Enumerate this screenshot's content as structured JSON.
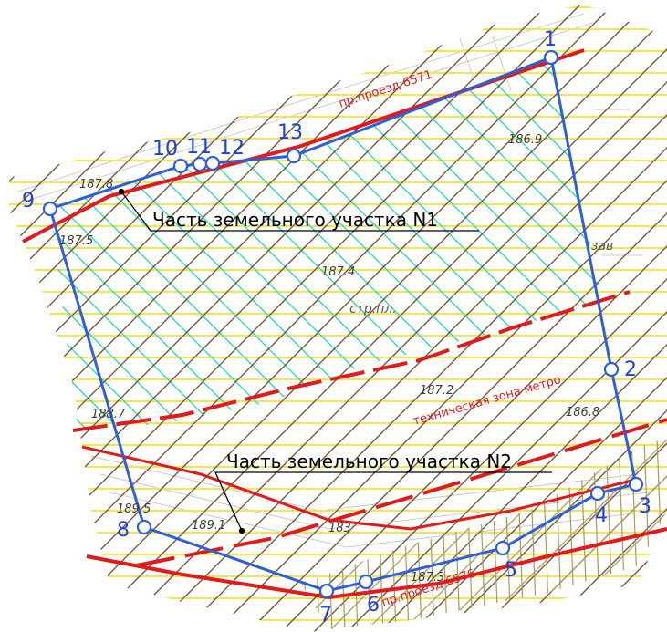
{
  "map": {
    "vertices": [
      {
        "label": "1"
      },
      {
        "label": "2"
      },
      {
        "label": "3"
      },
      {
        "label": "4"
      },
      {
        "label": "5"
      },
      {
        "label": "6"
      },
      {
        "label": "7"
      },
      {
        "label": "8"
      },
      {
        "label": "9"
      },
      {
        "label": "10"
      },
      {
        "label": "11"
      },
      {
        "label": "12"
      },
      {
        "label": "13"
      }
    ],
    "callouts": {
      "parcel1": "Часть земельного участка N1",
      "parcel2": "Часть земельного участка N2"
    },
    "labels": {
      "street_top": "пр.проезд 6571",
      "street_bottom": "пр.проезд 6576",
      "metro_zone": "техническая зона метро",
      "construction_site": "стр.пл.",
      "factory": "зав"
    },
    "elevations": [
      "186.9",
      "187.5",
      "187.4",
      "187.2",
      "186.8",
      "188.7",
      "189.5",
      "189.1",
      "187.3",
      "187.8",
      "187.5",
      "183"
    ],
    "colors": {
      "boundary": "#2f5fd8",
      "red_line": "#e01b1b",
      "yellow_hatch": "#f2e64a",
      "cyan_hatch": "#37d6c3",
      "brown_hatch": "#6b4a2b",
      "olive_hatch": "#a89a5a"
    }
  }
}
